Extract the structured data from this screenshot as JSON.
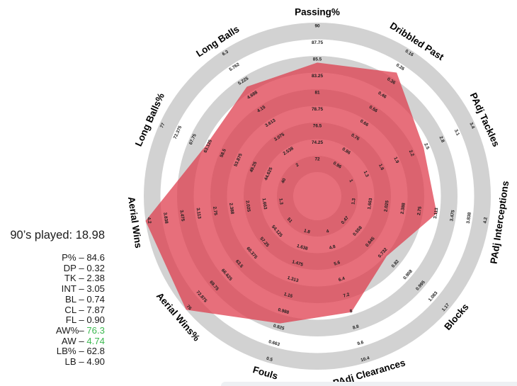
{
  "side_panel": {
    "played_title": "90’s played: 18.98",
    "stats": [
      {
        "prefix": "P% – ",
        "value": "84.6",
        "green": false
      },
      {
        "prefix": "DP – ",
        "value": "0.32",
        "green": false
      },
      {
        "prefix": "TK – ",
        "value": "2.38",
        "green": false
      },
      {
        "prefix": "INT – ",
        "value": "3.05",
        "green": false
      },
      {
        "prefix": "BL – ",
        "value": "0.74",
        "green": false
      },
      {
        "prefix": "CL – ",
        "value": "7.87",
        "green": false
      },
      {
        "prefix": "FL – ",
        "value": "0.90",
        "green": false
      },
      {
        "prefix": "AW%– ",
        "value": "76.3",
        "green": true
      },
      {
        "prefix": "AW – ",
        "value": "4.74",
        "green": true
      },
      {
        "prefix": "LB% – ",
        "value": "62.8",
        "green": false
      },
      {
        "prefix": "LB – ",
        "value": "4.90",
        "green": false
      }
    ]
  },
  "chart_data": {
    "type": "radar",
    "title": "",
    "rings": 9,
    "legend_position": "none",
    "grid": "concentric-bands",
    "band_colors": {
      "gray": "#d2d2d2",
      "white": "#ffffff"
    },
    "polygon_fill": "rgba(222,56,72,0.72)",
    "tick_color": "#1c1c1c",
    "axis_label_color": "#000000",
    "axes": [
      {
        "label": "Passing%",
        "ticks": [
          72,
          74.25,
          76.5,
          78.75,
          81,
          83.25,
          85.5,
          87.75,
          90
        ],
        "value": 84.6
      },
      {
        "label": "Dribbled Past",
        "ticks": [
          0.96,
          0.86,
          0.76,
          0.66,
          0.56,
          0.46,
          0.36,
          0.26,
          0.16
        ],
        "value": 0.32
      },
      {
        "label": "PAdj Tackles",
        "ticks": [
          1,
          1.3,
          1.6,
          1.9,
          2.2,
          2.5,
          2.8,
          3.1,
          3.4
        ],
        "value": 2.38
      },
      {
        "label": "PAdj Interceptions",
        "ticks": [
          1.3,
          1.663,
          2.025,
          2.388,
          2.75,
          3.113,
          3.475,
          3.838,
          4.2
        ],
        "value": 3.05
      },
      {
        "label": "Blocks",
        "ticks": [
          0.47,
          0.558,
          0.645,
          0.732,
          0.82,
          0.908,
          0.995,
          1.083,
          1.17
        ],
        "value": 0.74
      },
      {
        "label": "PAdj Clearances",
        "ticks": [
          4,
          4.8,
          5.6,
          6.4,
          7.2,
          8,
          8.8,
          9.6,
          10.4
        ],
        "value": 7.87
      },
      {
        "label": "Fouls",
        "ticks": [
          1.8,
          1.638,
          1.475,
          1.313,
          1.15,
          0.988,
          0.825,
          0.663,
          0.5
        ],
        "value": 0.9
      },
      {
        "label": "Aerial Wins%",
        "ticks": [
          51,
          54.125,
          57.25,
          60.375,
          63.5,
          66.625,
          69.75,
          72.875,
          76
        ],
        "value": 76.3
      },
      {
        "label": "Aerial Wins",
        "ticks": [
          1.3,
          1.663,
          2.025,
          2.388,
          2.75,
          3.113,
          3.475,
          3.838,
          4.2
        ],
        "value": 4.74
      },
      {
        "label": "Long Balls%",
        "ticks": [
          40,
          44.625,
          49.25,
          53.875,
          58.5,
          63.125,
          67.75,
          72.375,
          77
        ],
        "value": 62.8
      },
      {
        "label": "Long Balls",
        "ticks": [
          2,
          2.538,
          3.075,
          3.613,
          4.15,
          4.688,
          5.225,
          5.762,
          6.3
        ],
        "value": 4.9
      }
    ]
  }
}
